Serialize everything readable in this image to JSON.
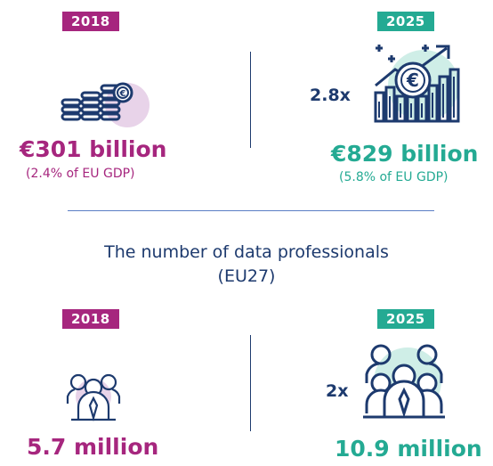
{
  "top": {
    "left": {
      "year": "2018",
      "value": "€301 billion",
      "detail": "(2.4% of EU GDP)",
      "icon": "coin-stacks-icon"
    },
    "right": {
      "year": "2025",
      "multiplier": "2.8x",
      "value": "€829 billion",
      "detail": "(5.8% of EU GDP)",
      "icon": "euro-growth-chart-icon"
    }
  },
  "section_title": {
    "line1": "The number of data professionals",
    "line2": "(EU27)"
  },
  "bottom": {
    "left": {
      "year": "2018",
      "value": "5.7 million",
      "icon": "small-group-people-icon"
    },
    "right": {
      "year": "2025",
      "multiplier": "2x",
      "value": "10.9 million",
      "icon": "large-group-people-icon"
    }
  },
  "colors": {
    "purple": "#a6267e",
    "teal": "#24aa93",
    "navy": "#1d3a6e",
    "light_purple": "#e8d3e9",
    "light_teal": "#cfeee7"
  }
}
